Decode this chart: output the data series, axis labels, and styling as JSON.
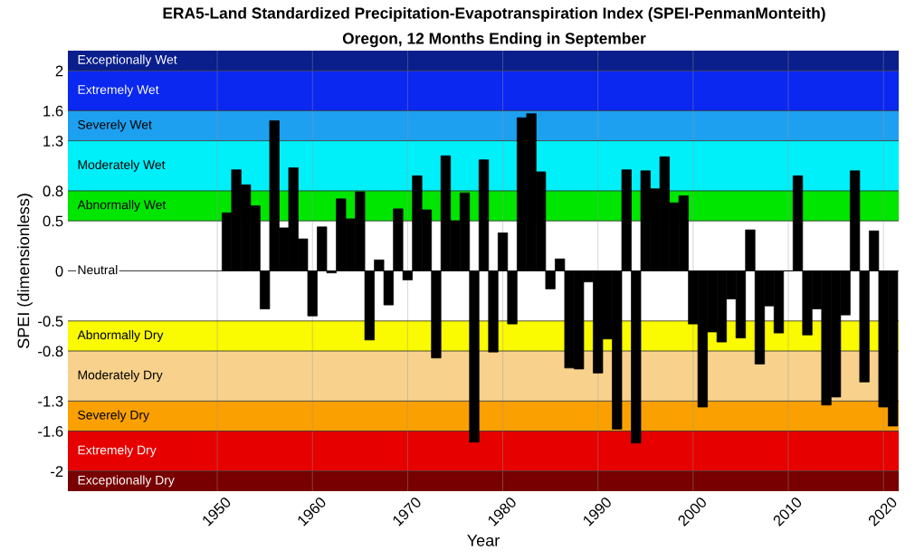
{
  "chart_data": {
    "type": "bar",
    "title": "ERA5-Land Standardized Precipitation-Evapotranspiration Index (SPEI-PenmanMonteith)",
    "subtitle": "Oregon, 12 Months Ending in September",
    "xlabel": "Year",
    "ylabel": "SPEI (dimensionless)",
    "x": [
      1951,
      1952,
      1953,
      1954,
      1955,
      1956,
      1957,
      1958,
      1959,
      1960,
      1961,
      1962,
      1963,
      1964,
      1965,
      1966,
      1967,
      1968,
      1969,
      1970,
      1971,
      1972,
      1973,
      1974,
      1975,
      1976,
      1977,
      1978,
      1979,
      1980,
      1981,
      1982,
      1983,
      1984,
      1985,
      1986,
      1987,
      1988,
      1989,
      1990,
      1991,
      1992,
      1993,
      1994,
      1995,
      1996,
      1997,
      1998,
      1999,
      2000,
      2001,
      2002,
      2003,
      2004,
      2005,
      2006,
      2007,
      2008,
      2009,
      2010,
      2011,
      2012,
      2013,
      2014,
      2015,
      2016,
      2017,
      2018,
      2019,
      2020,
      2021
    ],
    "values": [
      0.58,
      1.01,
      0.86,
      0.65,
      -0.38,
      1.5,
      0.43,
      1.03,
      0.32,
      -0.45,
      0.44,
      -0.02,
      0.72,
      0.52,
      0.79,
      -0.69,
      0.11,
      -0.34,
      0.62,
      -0.09,
      0.95,
      0.61,
      -0.87,
      1.15,
      0.5,
      0.78,
      -1.71,
      1.11,
      -0.81,
      0.38,
      -0.53,
      1.53,
      1.57,
      0.99,
      -0.18,
      0.12,
      -0.97,
      -0.98,
      -0.11,
      -1.02,
      -0.68,
      -1.58,
      1.01,
      -1.72,
      1.0,
      0.82,
      1.14,
      0.68,
      0.75,
      -0.53,
      -1.36,
      -0.61,
      -0.71,
      -0.28,
      -0.67,
      0.41,
      -0.93,
      -0.35,
      -0.62,
      0.0,
      0.95,
      -0.64,
      -0.38,
      -1.34,
      -1.26,
      -0.44,
      1.0,
      -1.11,
      0.4,
      -1.36,
      -1.55
    ],
    "color": "#000000",
    "xlim": [
      1934.3,
      2021.6
    ],
    "xticks": [
      1950,
      1960,
      1970,
      1980,
      1990,
      2000,
      2010,
      2020
    ],
    "ylim": [
      -2.2,
      2.2
    ],
    "yticks": [
      -2,
      -1.6,
      -1.3,
      -0.8,
      -0.5,
      0,
      0.5,
      0.8,
      1.3,
      1.6,
      2
    ],
    "grid": true,
    "ref_lines": [
      {
        "axis": "y",
        "value": 0,
        "label": "Neutral",
        "color": "#808080"
      }
    ],
    "bands": [
      {
        "axis": "y",
        "from": 2,
        "to": 2.2,
        "label": "Exceptionally Wet",
        "color": "#0a1e8c"
      },
      {
        "axis": "y",
        "from": 1.6,
        "to": 2,
        "label": "Extremely Wet",
        "color": "#0a28f0"
      },
      {
        "axis": "y",
        "from": 1.3,
        "to": 1.6,
        "label": "Severely Wet",
        "color": "#1ea0f0"
      },
      {
        "axis": "y",
        "from": 0.8,
        "to": 1.3,
        "label": "Moderately Wet",
        "color": "#00f0fa"
      },
      {
        "axis": "y",
        "from": 0.5,
        "to": 0.8,
        "label": "Abnormally Wet",
        "color": "#00e600"
      },
      {
        "axis": "y",
        "from": -0.8,
        "to": -0.5,
        "label": "Abnormally Dry",
        "color": "#fafa00"
      },
      {
        "axis": "y",
        "from": -1.3,
        "to": -0.8,
        "label": "Moderately Dry",
        "color": "#f8d28c"
      },
      {
        "axis": "y",
        "from": -1.6,
        "to": -1.3,
        "label": "Severely Dry",
        "color": "#faa000"
      },
      {
        "axis": "y",
        "from": -2,
        "to": -1.6,
        "label": "Extremely Dry",
        "color": "#e60000"
      },
      {
        "axis": "y",
        "from": -2.2,
        "to": -2,
        "label": "Exceptionally Dry",
        "color": "#780000"
      }
    ]
  }
}
